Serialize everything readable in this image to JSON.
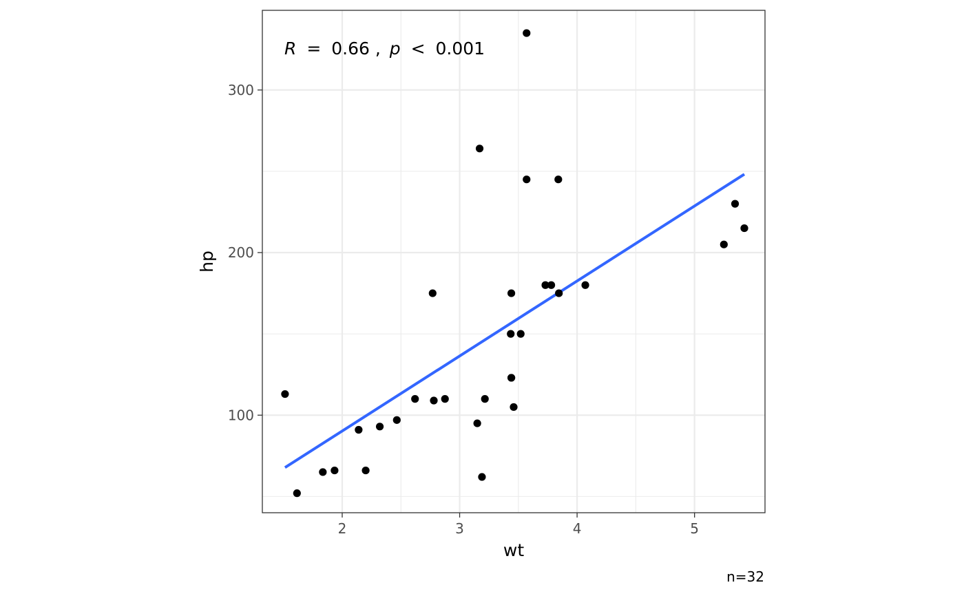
{
  "chart_data": {
    "type": "scatter",
    "xlabel": "wt",
    "ylabel": "hp",
    "xlim": [
      1.32,
      5.6
    ],
    "ylim": [
      40,
      349
    ],
    "x_ticks": [
      2,
      3,
      4,
      5
    ],
    "y_ticks": [
      100,
      200,
      300
    ],
    "x_minor": [
      2.5,
      3.5,
      4.5
    ],
    "y_minor": [
      50,
      150,
      250
    ],
    "grid": true,
    "theme": "bw",
    "annotation": {
      "R_label": "R",
      "R_value": "0.66",
      "p_label": "p",
      "p_value": "0.001",
      "eq": "=",
      "lt": "<",
      "sep": ","
    },
    "caption": "n=32",
    "point_color": "#000000",
    "line_color": "#3366FF",
    "points": [
      {
        "x": 2.62,
        "y": 110
      },
      {
        "x": 2.875,
        "y": 110
      },
      {
        "x": 2.32,
        "y": 93
      },
      {
        "x": 3.215,
        "y": 110
      },
      {
        "x": 3.44,
        "y": 175
      },
      {
        "x": 3.46,
        "y": 105
      },
      {
        "x": 3.57,
        "y": 245
      },
      {
        "x": 3.19,
        "y": 62
      },
      {
        "x": 3.15,
        "y": 95
      },
      {
        "x": 3.44,
        "y": 123
      },
      {
        "x": 3.44,
        "y": 123
      },
      {
        "x": 4.07,
        "y": 180
      },
      {
        "x": 3.73,
        "y": 180
      },
      {
        "x": 3.78,
        "y": 180
      },
      {
        "x": 5.25,
        "y": 205
      },
      {
        "x": 5.424,
        "y": 215
      },
      {
        "x": 5.345,
        "y": 230
      },
      {
        "x": 2.2,
        "y": 66
      },
      {
        "x": 1.615,
        "y": 52
      },
      {
        "x": 1.835,
        "y": 65
      },
      {
        "x": 2.465,
        "y": 97
      },
      {
        "x": 3.52,
        "y": 150
      },
      {
        "x": 3.435,
        "y": 150
      },
      {
        "x": 3.84,
        "y": 245
      },
      {
        "x": 3.845,
        "y": 175
      },
      {
        "x": 1.935,
        "y": 66
      },
      {
        "x": 2.14,
        "y": 91
      },
      {
        "x": 1.513,
        "y": 113
      },
      {
        "x": 3.17,
        "y": 264
      },
      {
        "x": 2.77,
        "y": 175
      },
      {
        "x": 3.57,
        "y": 335
      },
      {
        "x": 2.78,
        "y": 109
      }
    ],
    "fit_line": {
      "x": [
        1.513,
        5.424
      ],
      "y": [
        67.8,
        248.2
      ]
    }
  }
}
